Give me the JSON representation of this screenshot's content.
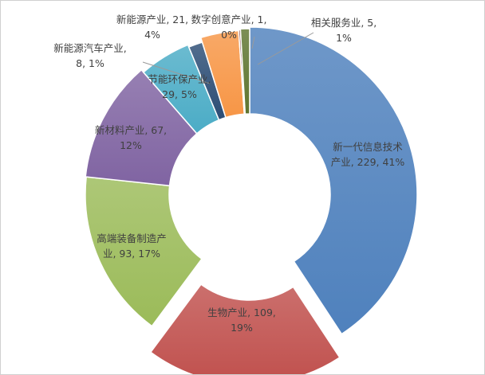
{
  "chart_data": {
    "type": "pie",
    "variant": "doughnut",
    "title": "",
    "legend": "none",
    "slices": [
      {
        "name": "新一代信息技术产业",
        "value": 229,
        "percent": "41%",
        "color": "#4F81BD",
        "label_lines": [
          "新一代信息技术",
          "产业, 229, 41%"
        ]
      },
      {
        "name": "生物产业",
        "value": 109,
        "percent": "19%",
        "color": "#C0504D",
        "label_lines": [
          "生物产业, 109,",
          "19%"
        ]
      },
      {
        "name": "高端装备制造产业",
        "value": 93,
        "percent": "17%",
        "color": "#9BBB59",
        "label_lines": [
          "高端装备制造产",
          "业, 93, 17%"
        ]
      },
      {
        "name": "新材料产业",
        "value": 67,
        "percent": "12%",
        "color": "#8064A2",
        "label_lines": [
          "新材料产业, 67,",
          "12%"
        ]
      },
      {
        "name": "节能环保产业",
        "value": 29,
        "percent": "5%",
        "color": "#4BACC6",
        "label_lines": [
          "节能环保产业,",
          "29, 5%"
        ]
      },
      {
        "name": "新能源汽车产业",
        "value": 8,
        "percent": "1%",
        "color": "#2C4D75",
        "label_lines": [
          "新能源汽车产业,",
          "8, 1%"
        ]
      },
      {
        "name": "新能源产业",
        "value": 21,
        "percent": "4%",
        "color": "#F79646",
        "label_lines": [
          "新能源产业, 21,",
          "4%"
        ]
      },
      {
        "name": "数字创意产业",
        "value": 1,
        "percent": "0%",
        "color": "#772C2A",
        "label_lines": [
          "数字创意产业, 1,",
          "0%"
        ]
      },
      {
        "name": "相关服务业",
        "value": 5,
        "percent": "1%",
        "color": "#5F7530",
        "label_lines": [
          "相关服务业, 5,",
          "1%"
        ]
      }
    ]
  }
}
